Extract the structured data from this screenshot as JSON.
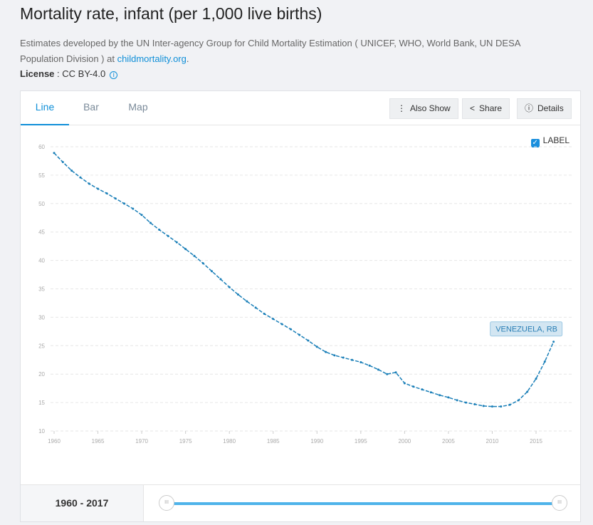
{
  "header": {
    "title": "Mortality rate, infant (per 1,000 live births)",
    "description": "Estimates developed by the UN Inter-agency Group for Child Mortality Estimation ( UNICEF, WHO, World Bank, UN DESA Population Division ) at ",
    "link": "childmortality.org",
    "license_label": "License",
    "license_value": " : CC BY-4.0"
  },
  "tabs": [
    "Line",
    "Bar",
    "Map"
  ],
  "buttons": {
    "also_show": "Also Show",
    "share": "Share",
    "details": "Details"
  },
  "label_toggle": "LABEL",
  "footer": {
    "range": "1960 - 2017"
  },
  "colors": {
    "line": "#1a7fb8",
    "accent": "#0f8fd8"
  },
  "chart_data": {
    "type": "line",
    "title": "Mortality rate, infant (per 1,000 live births)",
    "xlabel": "",
    "ylabel": "",
    "ylim": [
      10,
      60
    ],
    "xlim": [
      1960,
      2017
    ],
    "yticks": [
      10,
      15,
      20,
      25,
      30,
      35,
      40,
      45,
      50,
      55,
      60
    ],
    "xticks": [
      1960,
      1965,
      1970,
      1975,
      1980,
      1985,
      1990,
      1995,
      2000,
      2005,
      2010,
      2015
    ],
    "grid": true,
    "series": [
      {
        "name": "VENEZUELA, RB",
        "x": [
          1960,
          1961,
          1962,
          1963,
          1964,
          1965,
          1966,
          1967,
          1968,
          1969,
          1970,
          1971,
          1972,
          1973,
          1974,
          1975,
          1976,
          1977,
          1978,
          1979,
          1980,
          1981,
          1982,
          1983,
          1984,
          1985,
          1986,
          1987,
          1988,
          1989,
          1990,
          1991,
          1992,
          1993,
          1994,
          1995,
          1996,
          1997,
          1998,
          1999,
          2000,
          2001,
          2002,
          2003,
          2004,
          2005,
          2006,
          2007,
          2008,
          2009,
          2010,
          2011,
          2012,
          2013,
          2014,
          2015,
          2016,
          2017
        ],
        "values": [
          58.9,
          57.3,
          55.8,
          54.6,
          53.5,
          52.6,
          51.8,
          50.9,
          50.0,
          49.1,
          48.0,
          46.6,
          45.4,
          44.3,
          43.2,
          42.0,
          40.8,
          39.5,
          38.1,
          36.7,
          35.3,
          34.0,
          32.8,
          31.7,
          30.6,
          29.7,
          28.8,
          27.9,
          26.9,
          25.9,
          24.8,
          23.9,
          23.3,
          22.9,
          22.5,
          22.1,
          21.5,
          20.8,
          20.0,
          20.3,
          18.4,
          17.8,
          17.3,
          16.8,
          16.3,
          15.9,
          15.4,
          15.0,
          14.7,
          14.4,
          14.3,
          14.3,
          14.6,
          15.4,
          16.9,
          19.2,
          22.2,
          25.7
        ]
      }
    ]
  }
}
